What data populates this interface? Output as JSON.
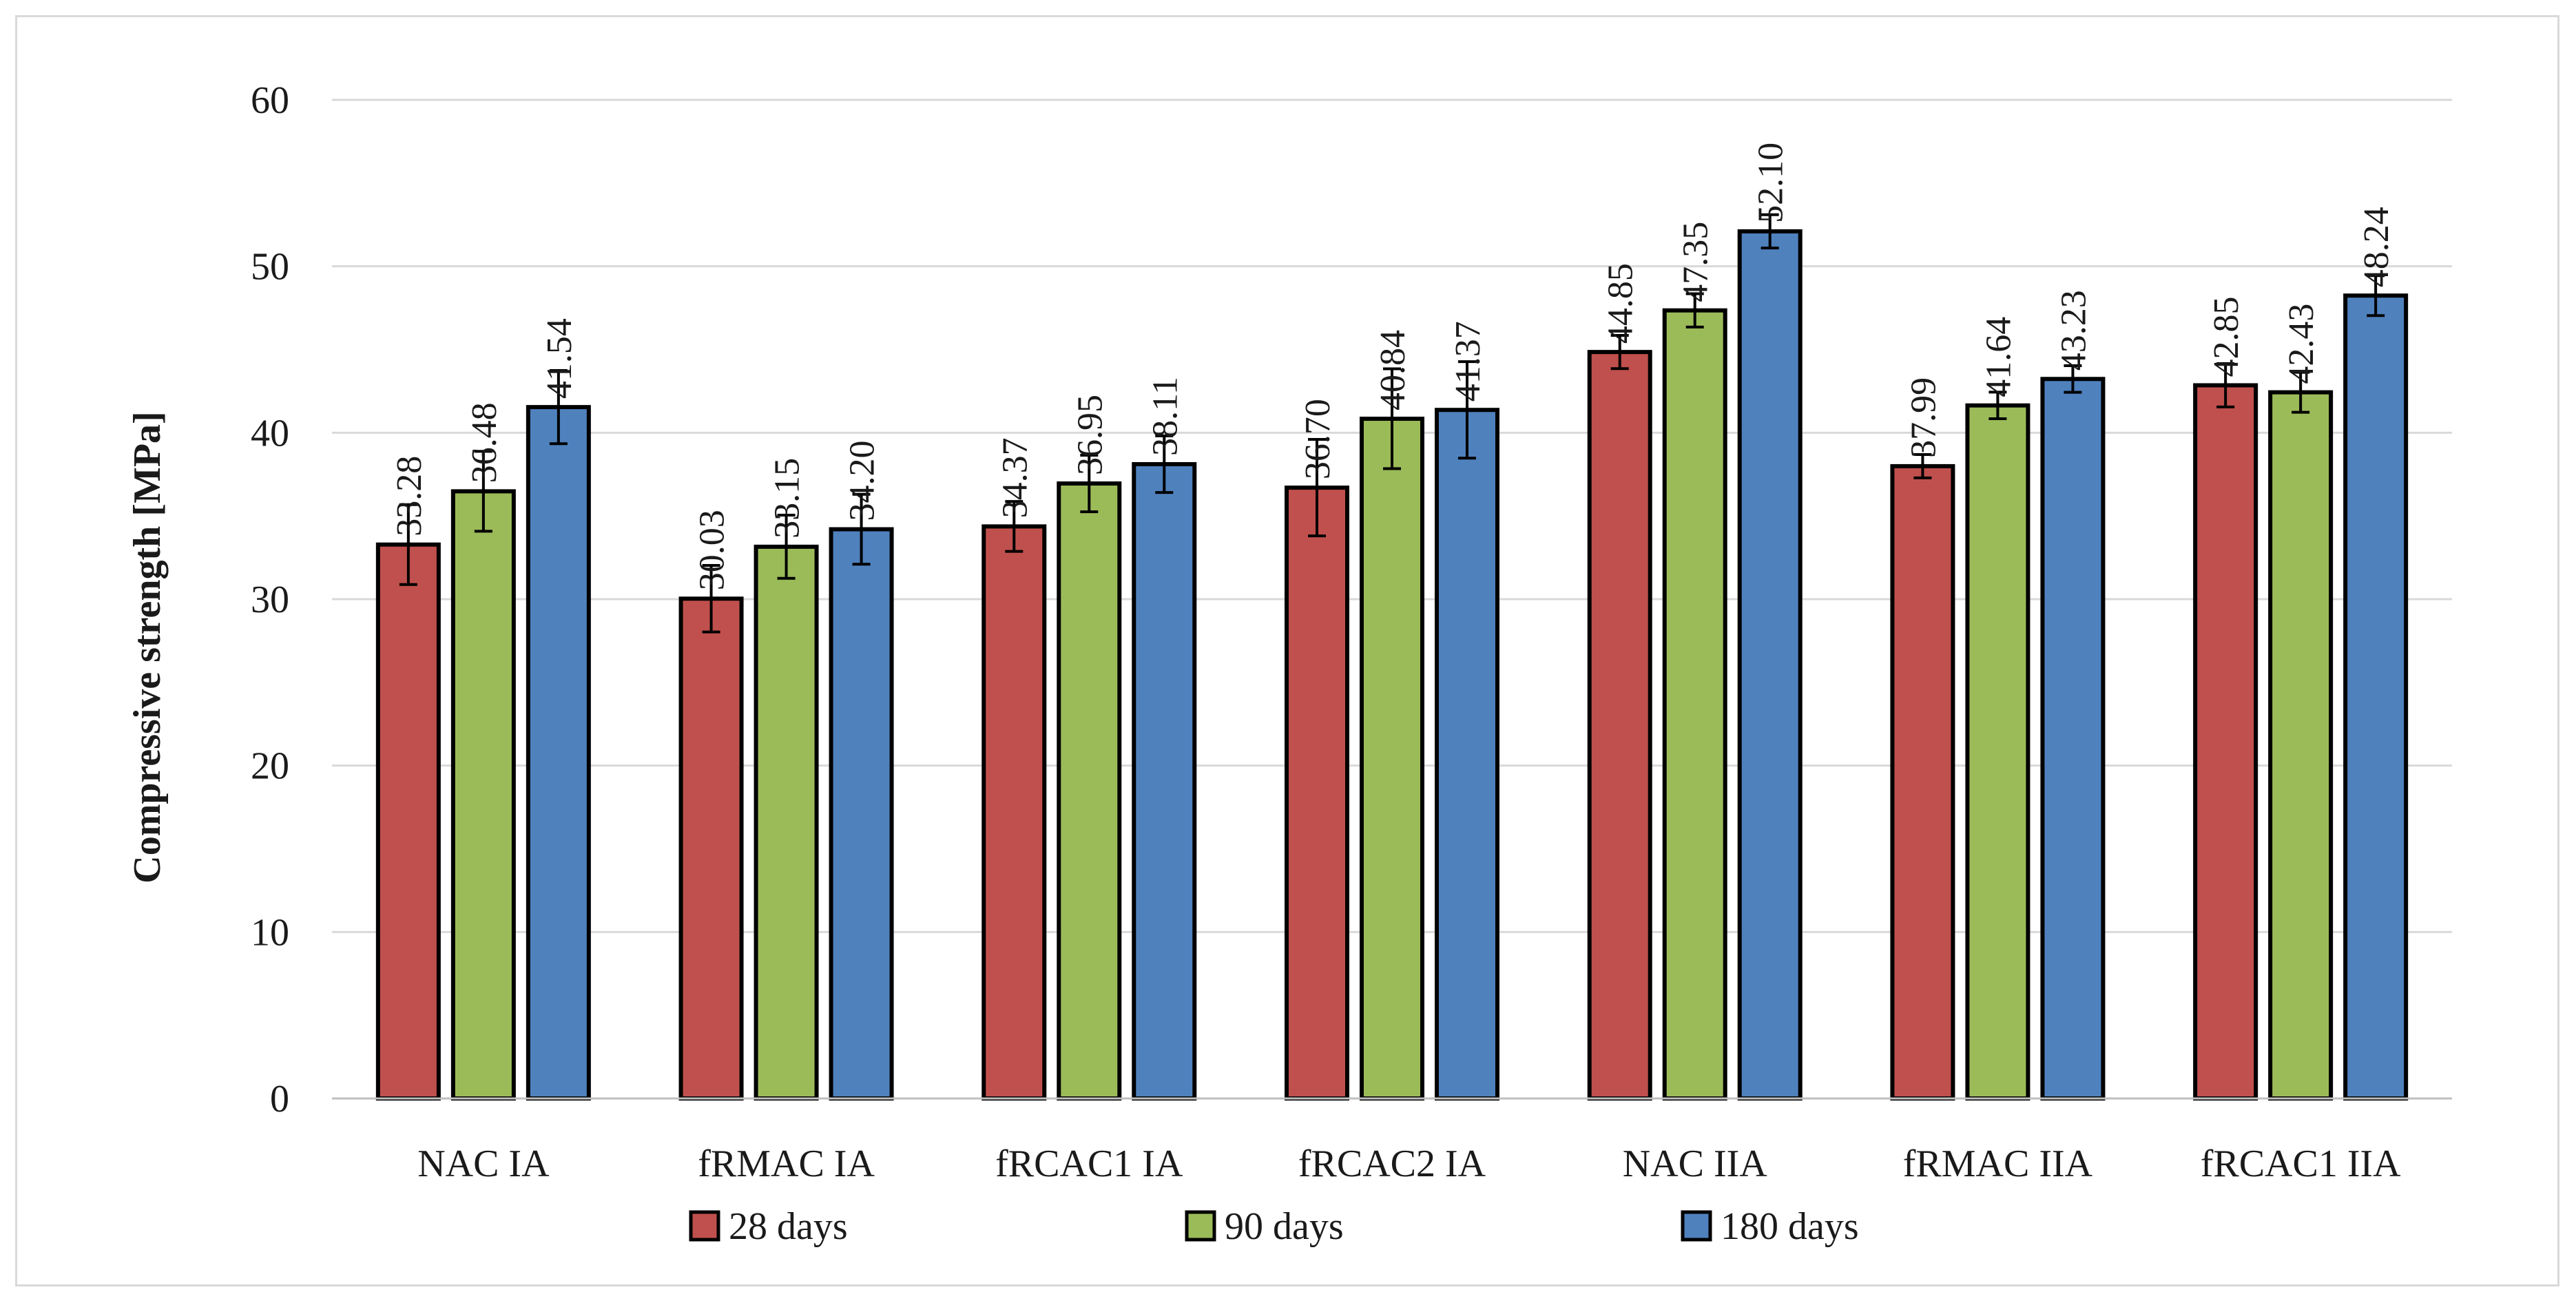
{
  "chart_data": {
    "type": "bar",
    "ylabel": "Compressive strength [MPa]",
    "xlabel": "",
    "ylim": [
      0,
      60
    ],
    "yticks": [
      0,
      10,
      20,
      30,
      40,
      50,
      60
    ],
    "grid": "horizontal",
    "legend_position": "bottom",
    "categories": [
      "NAC IA",
      "fRMAC IA",
      "fRCAC1 IA",
      "fRCAC2 IA",
      "NAC IIA",
      "fRMAC IIA",
      "fRCAC1 IIA"
    ],
    "series": [
      {
        "name": "28 days",
        "color": "#c0504d",
        "values": [
          33.28,
          30.03,
          34.37,
          36.7,
          44.85,
          37.99,
          42.85
        ],
        "labels": [
          "33.28",
          "30.03",
          "34.37",
          "36.70",
          "44.85",
          "37.99",
          "42.85"
        ],
        "errors": [
          2.4,
          2.0,
          1.5,
          2.9,
          1.0,
          0.7,
          1.3
        ]
      },
      {
        "name": "90 days",
        "color": "#9bbb59",
        "values": [
          36.48,
          33.15,
          36.95,
          40.84,
          47.35,
          41.64,
          42.43
        ],
        "labels": [
          "36.48",
          "33.15",
          "36.95",
          "40.84",
          "47.35",
          "41.64",
          "42.43"
        ],
        "errors": [
          2.4,
          1.9,
          1.7,
          3.0,
          1.0,
          0.8,
          1.2
        ]
      },
      {
        "name": "180 days",
        "color": "#4f81bd",
        "values": [
          41.54,
          34.2,
          38.11,
          41.37,
          52.1,
          43.23,
          48.24
        ],
        "labels": [
          "41.54",
          "34.20",
          "38.11",
          "41.37",
          "52.10",
          "43.23",
          "48.24"
        ],
        "errors": [
          2.2,
          2.1,
          1.7,
          2.9,
          1.0,
          0.8,
          1.2
        ]
      }
    ]
  }
}
